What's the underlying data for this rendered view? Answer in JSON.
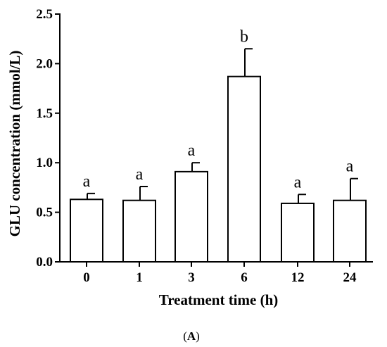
{
  "chart_data": {
    "type": "bar",
    "title": "",
    "xlabel": "Treatment time (h)",
    "ylabel": "GLU concentration (mmol/L)",
    "ylim": [
      0,
      2.5
    ],
    "yticks": [
      "0.0",
      "0.5",
      "1.0",
      "1.5",
      "2.0",
      "2.5"
    ],
    "categories": [
      "0",
      "1",
      "3",
      "6",
      "12",
      "24"
    ],
    "values": [
      0.63,
      0.62,
      0.91,
      1.87,
      0.59,
      0.62
    ],
    "errors": [
      0.06,
      0.14,
      0.09,
      0.28,
      0.09,
      0.22
    ],
    "significance": [
      "a",
      "a",
      "a",
      "b",
      "a",
      "a"
    ],
    "colors": {
      "bar_fill": "#ffffff",
      "bar_stroke": "#000000"
    }
  },
  "panel_label": {
    "open": "(",
    "letter": "A",
    "close": ")"
  }
}
